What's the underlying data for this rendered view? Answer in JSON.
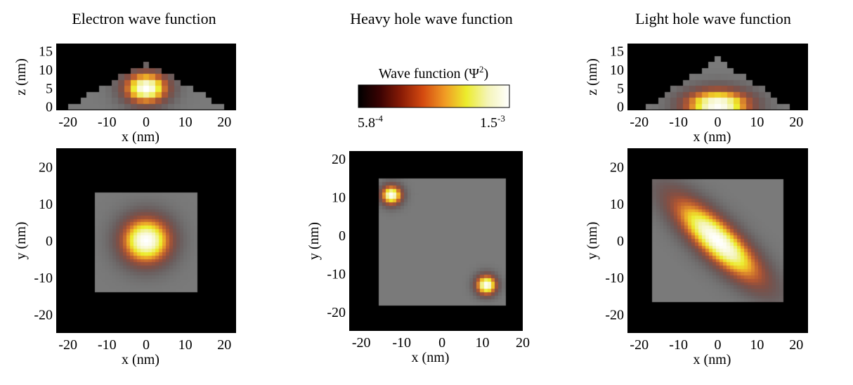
{
  "figure": {
    "colorbar": {
      "title": "Wave function (Ψ",
      "title_sup": "2",
      "title_close": ")",
      "min_base": "5.8",
      "min_exp": "-4",
      "max_base": "1.5",
      "max_exp": "-3",
      "colors": [
        "#000000",
        "#3a0303",
        "#8a1c06",
        "#d44a10",
        "#f09a24",
        "#ecec2c",
        "#f4f4b8",
        "#ffffff"
      ]
    },
    "background_colors": {
      "outside": "#000000",
      "dot": "#7a7a7a"
    }
  },
  "chart_data": [
    {
      "type": "heatmap",
      "id": "electron",
      "title": "Electron wave function",
      "views": [
        {
          "view": "side",
          "xlabel": "x (nm)",
          "ylabel": "z (nm)",
          "xlim": [
            -23,
            23
          ],
          "ylim": [
            -1,
            17
          ],
          "xticks": [
            "-20",
            "-10",
            "0",
            "10",
            "20"
          ],
          "xtick_values": [
            -20,
            -10,
            0,
            10,
            20
          ],
          "yticks": [
            "15",
            "10",
            "5",
            "0"
          ],
          "ytick_values": [
            15,
            10,
            5,
            0
          ],
          "dot": {
            "shape": "pyramid",
            "base_half_width": 20,
            "height": 12
          },
          "lobes": [
            {
              "x": 0,
              "y": 5,
              "sx": 4,
              "sy": 3,
              "peak": 1.0
            }
          ]
        },
        {
          "view": "top",
          "xlabel": "x (nm)",
          "ylabel": "y (nm)",
          "xlim": [
            -23,
            23
          ],
          "ylim": [
            -25,
            25
          ],
          "xticks": [
            "-20",
            "-10",
            "0",
            "10",
            "20"
          ],
          "xtick_values": [
            -20,
            -10,
            0,
            10,
            20
          ],
          "yticks": [
            "20",
            "10",
            "0",
            "-10",
            "-20"
          ],
          "ytick_values": [
            20,
            10,
            0,
            -10,
            -20
          ],
          "dot": {
            "shape": "square",
            "x": [
              -13,
              13
            ],
            "y": [
              -14,
              13
            ]
          },
          "lobes": [
            {
              "x": 0,
              "y": 0,
              "sx": 4.5,
              "sy": 4.5,
              "peak": 1.0
            }
          ]
        }
      ]
    },
    {
      "type": "heatmap",
      "id": "heavy-hole",
      "title": "Heavy hole wave function",
      "views": [
        {
          "view": "top",
          "xlabel": "x (nm)",
          "ylabel": "y (nm)",
          "xlim": [
            -23,
            20
          ],
          "ylim": [
            -25,
            22
          ],
          "xticks": [
            "-20",
            "-10",
            "0",
            "10",
            "20"
          ],
          "xtick_values": [
            -20,
            -10,
            0,
            10,
            20
          ],
          "yticks": [
            "20",
            "10",
            "0",
            "-10",
            "-20"
          ],
          "ytick_values": [
            20,
            10,
            0,
            -10,
            -20
          ],
          "dot": {
            "shape": "square",
            "x": [
              -16,
              16
            ],
            "y": [
              -18,
              15
            ]
          },
          "lobes": [
            {
              "x": -12.5,
              "y": 10.5,
              "sx": 1.8,
              "sy": 1.8,
              "peak": 1.0
            },
            {
              "x": 11,
              "y": -13,
              "sx": 1.8,
              "sy": 1.8,
              "peak": 1.0
            }
          ]
        }
      ]
    },
    {
      "type": "heatmap",
      "id": "light-hole",
      "title": "Light hole wave function",
      "views": [
        {
          "view": "side",
          "xlabel": "x (nm)",
          "ylabel": "z (nm)",
          "xlim": [
            -23,
            23
          ],
          "ylim": [
            -1,
            17
          ],
          "xticks": [
            "-20",
            "-10",
            "0",
            "10",
            "20"
          ],
          "xtick_values": [
            -20,
            -10,
            0,
            10,
            20
          ],
          "yticks": [
            "15",
            "10",
            "5",
            "0"
          ],
          "ytick_values": [
            15,
            10,
            5,
            0
          ],
          "dot": {
            "shape": "pyramid",
            "base_half_width": 18,
            "height": 13
          },
          "lobes": [
            {
              "x": 0,
              "y": 0.5,
              "sx": 6,
              "sy": 3,
              "peak": 1.0
            }
          ]
        },
        {
          "view": "top",
          "xlabel": "x (nm)",
          "ylabel": "y (nm)",
          "xlim": [
            -23,
            23
          ],
          "ylim": [
            -25,
            25
          ],
          "xticks": [
            "-20",
            "-10",
            "0",
            "10",
            "20"
          ],
          "xtick_values": [
            -20,
            -10,
            0,
            10,
            20
          ],
          "yticks": [
            "20",
            "10",
            "0",
            "-10",
            "-20"
          ],
          "ytick_values": [
            20,
            10,
            0,
            -10,
            -20
          ],
          "dot": {
            "shape": "square",
            "x": [
              -17,
              17
            ],
            "y": [
              -17,
              17
            ]
          },
          "lobes": [
            {
              "x": 0,
              "y": 0,
              "sx": 11,
              "sy": 3.5,
              "angle": -45,
              "peak": 1.0
            }
          ]
        }
      ]
    }
  ]
}
